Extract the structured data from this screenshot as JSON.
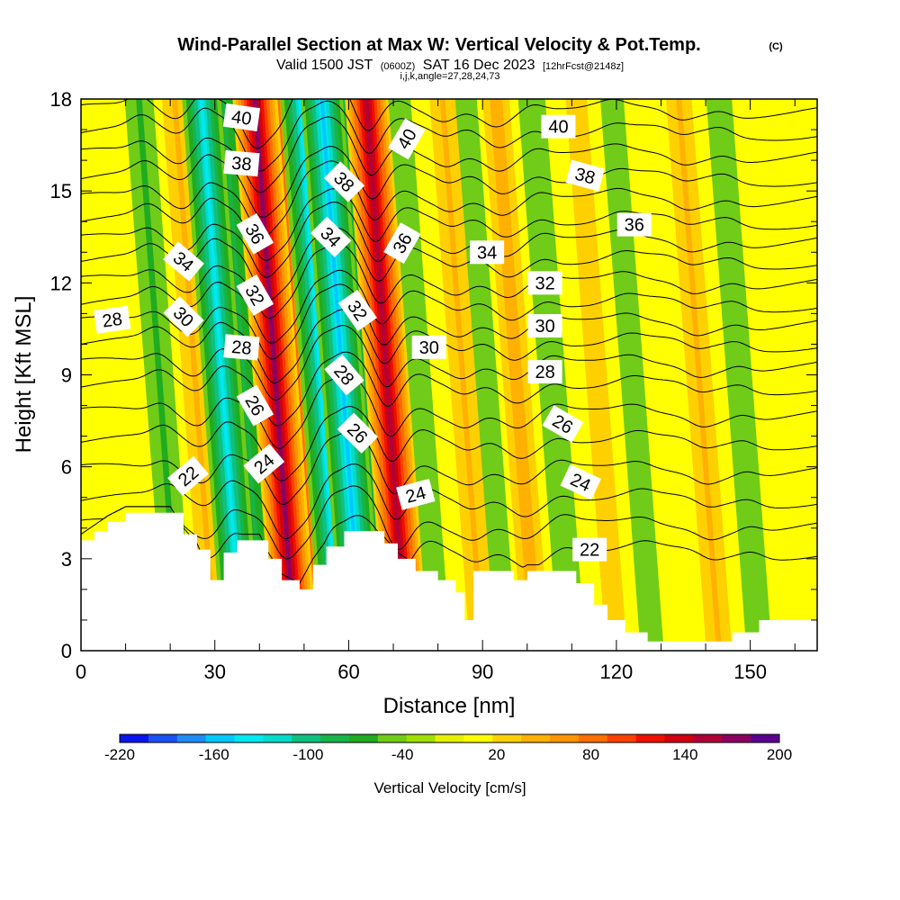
{
  "header": {
    "title_main": "Wind-Parallel Section at Max W: Vertical Velocity & Pot.Temp.",
    "title_mark": "(C)",
    "valid_a": "Valid 1500 JST",
    "valid_b": "(0600Z)",
    "valid_c": "SAT 16 Dec 2023",
    "valid_d": "[12hrFcst@2148z]",
    "indices": "i,j,k,angle=27,28,24,73"
  },
  "chart_data": {
    "type": "heatmap",
    "xlabel": "Distance [nm]",
    "ylabel": "Height [Kft MSL]",
    "xlim": [
      0,
      165
    ],
    "ylim": [
      0,
      18
    ],
    "x_ticks": [
      0,
      30,
      60,
      90,
      120,
      150
    ],
    "y_ticks": [
      0,
      3,
      6,
      9,
      12,
      15,
      18
    ],
    "colorbar": {
      "label": "Vertical Velocity [cm/s]",
      "tick_labels": [
        "-220",
        "-160",
        "-100",
        "-40",
        "20",
        "80",
        "140",
        "200"
      ],
      "tick_values": [
        -220,
        -160,
        -100,
        -40,
        20,
        80,
        140,
        200
      ],
      "range": [
        -220,
        200
      ],
      "colors": [
        "#0a14f0",
        "#1a50f4",
        "#1e8cf6",
        "#00c8ff",
        "#00e8f0",
        "#00dcc8",
        "#10c080",
        "#18b448",
        "#20ac20",
        "#70cc18",
        "#a0e000",
        "#e6f000",
        "#ffff00",
        "#ffd000",
        "#ffb000",
        "#ff9400",
        "#ff6e00",
        "#ff4000",
        "#f01000",
        "#d00010",
        "#b00038",
        "#8c0060",
        "#5a0090"
      ]
    },
    "w_columns": [
      {
        "x": 22,
        "w": -60
      },
      {
        "x": 30,
        "w": 40
      },
      {
        "x": 36,
        "w": -130
      },
      {
        "x": 41,
        "w": -80
      },
      {
        "x": 48,
        "w": 170
      },
      {
        "x": 53,
        "w": 80
      },
      {
        "x": 58,
        "w": -130
      },
      {
        "x": 63,
        "w": -150
      },
      {
        "x": 67,
        "w": -90
      },
      {
        "x": 73,
        "w": 160
      },
      {
        "x": 80,
        "w": -40
      },
      {
        "x": 90,
        "w": 40
      },
      {
        "x": 95,
        "w": -30
      },
      {
        "x": 102,
        "w": 50
      },
      {
        "x": 110,
        "w": -50
      },
      {
        "x": 120,
        "w": 10
      },
      {
        "x": 128,
        "w": -25
      },
      {
        "x": 143,
        "w": 40
      },
      {
        "x": 152,
        "w": -40
      }
    ],
    "terrain": [
      {
        "x": 0,
        "h": 3.6
      },
      {
        "x": 3,
        "h": 3.9
      },
      {
        "x": 6,
        "h": 4.2
      },
      {
        "x": 10,
        "h": 4.5
      },
      {
        "x": 20,
        "h": 4.5
      },
      {
        "x": 23,
        "h": 3.8
      },
      {
        "x": 26,
        "h": 3.3
      },
      {
        "x": 29,
        "h": 2.3
      },
      {
        "x": 32,
        "h": 3.2
      },
      {
        "x": 35,
        "h": 3.6
      },
      {
        "x": 40,
        "h": 3.6
      },
      {
        "x": 42,
        "h": 3.0
      },
      {
        "x": 45,
        "h": 2.3
      },
      {
        "x": 49,
        "h": 2.0
      },
      {
        "x": 52,
        "h": 2.8
      },
      {
        "x": 55,
        "h": 3.4
      },
      {
        "x": 59,
        "h": 3.9
      },
      {
        "x": 65,
        "h": 3.9
      },
      {
        "x": 68,
        "h": 3.5
      },
      {
        "x": 71,
        "h": 3.0
      },
      {
        "x": 75,
        "h": 2.6
      },
      {
        "x": 80,
        "h": 2.3
      },
      {
        "x": 84,
        "h": 1.9
      },
      {
        "x": 86,
        "h": 1.0
      },
      {
        "x": 88,
        "h": 2.6
      },
      {
        "x": 92,
        "h": 2.6
      },
      {
        "x": 97,
        "h": 2.3
      },
      {
        "x": 100,
        "h": 2.6
      },
      {
        "x": 107,
        "h": 2.6
      },
      {
        "x": 111,
        "h": 2.2
      },
      {
        "x": 115,
        "h": 1.5
      },
      {
        "x": 118,
        "h": 1.0
      },
      {
        "x": 122,
        "h": 0.6
      },
      {
        "x": 127,
        "h": 0.3
      },
      {
        "x": 143,
        "h": 0.3
      },
      {
        "x": 146,
        "h": 0.6
      },
      {
        "x": 152,
        "h": 1.0
      },
      {
        "x": 165,
        "h": 1.0
      }
    ],
    "theta_contours": [
      22,
      24,
      26,
      28,
      30,
      32,
      34,
      36,
      38,
      40
    ],
    "contour_labels": [
      {
        "text": "40",
        "x": 36,
        "y": 17.4,
        "rot": 8
      },
      {
        "text": "38",
        "x": 36,
        "y": 15.9,
        "rot": 5
      },
      {
        "text": "36",
        "x": 39,
        "y": 13.6,
        "rot": 60
      },
      {
        "text": "34",
        "x": 23,
        "y": 12.7,
        "rot": 40
      },
      {
        "text": "32",
        "x": 39,
        "y": 11.6,
        "rot": 60
      },
      {
        "text": "30",
        "x": 23,
        "y": 10.9,
        "rot": 45
      },
      {
        "text": "28",
        "x": 7,
        "y": 10.8,
        "rot": -8
      },
      {
        "text": "28",
        "x": 36,
        "y": 9.9,
        "rot": 5
      },
      {
        "text": "26",
        "x": 39,
        "y": 8.0,
        "rot": 60
      },
      {
        "text": "24",
        "x": 41,
        "y": 6.1,
        "rot": -40
      },
      {
        "text": "22",
        "x": 24,
        "y": 5.7,
        "rot": -40
      },
      {
        "text": "38",
        "x": 59,
        "y": 15.3,
        "rot": 45
      },
      {
        "text": "34",
        "x": 56,
        "y": 13.5,
        "rot": 45
      },
      {
        "text": "32",
        "x": 62,
        "y": 11.1,
        "rot": 55
      },
      {
        "text": "28",
        "x": 59,
        "y": 9.0,
        "rot": 50
      },
      {
        "text": "26",
        "x": 62,
        "y": 7.1,
        "rot": 45
      },
      {
        "text": "40",
        "x": 73,
        "y": 16.7,
        "rot": -60
      },
      {
        "text": "36",
        "x": 72,
        "y": 13.3,
        "rot": -60
      },
      {
        "text": "30",
        "x": 78,
        "y": 9.9,
        "rot": 0
      },
      {
        "text": "24",
        "x": 75,
        "y": 5.1,
        "rot": -15
      },
      {
        "text": "34",
        "x": 91,
        "y": 13.0,
        "rot": 0
      },
      {
        "text": "40",
        "x": 107,
        "y": 17.1,
        "rot": 0
      },
      {
        "text": "38",
        "x": 113,
        "y": 15.5,
        "rot": 15
      },
      {
        "text": "36",
        "x": 124,
        "y": 13.9,
        "rot": 0
      },
      {
        "text": "32",
        "x": 104,
        "y": 12.0,
        "rot": 0
      },
      {
        "text": "30",
        "x": 104,
        "y": 10.6,
        "rot": 0
      },
      {
        "text": "28",
        "x": 104,
        "y": 9.1,
        "rot": 0
      },
      {
        "text": "26",
        "x": 108,
        "y": 7.4,
        "rot": 30
      },
      {
        "text": "24",
        "x": 112,
        "y": 5.5,
        "rot": 25
      },
      {
        "text": "22",
        "x": 114,
        "y": 3.3,
        "rot": 0
      }
    ]
  }
}
